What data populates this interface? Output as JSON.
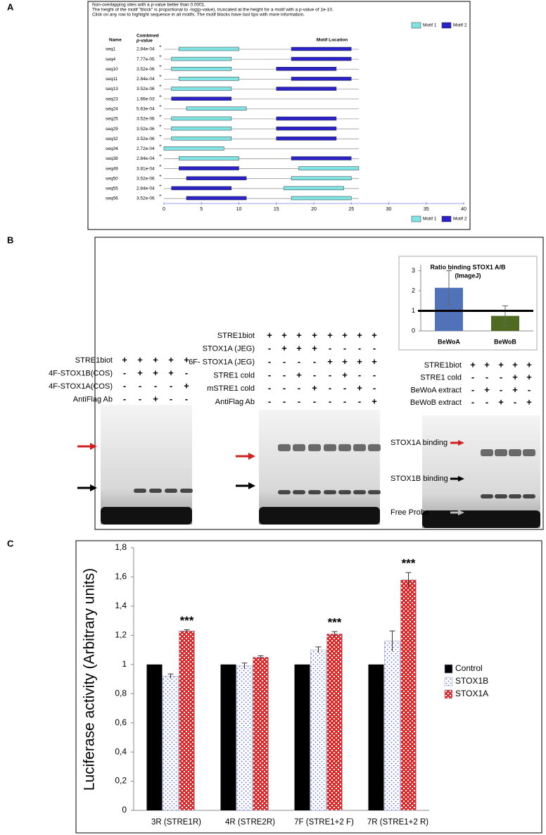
{
  "panels": {
    "labels": [
      "A",
      "B",
      "C"
    ]
  },
  "chart_data": [
    {
      "type": "motif",
      "header_lines": [
        "Non-overlapping sites with a p-value better than 0.0001.",
        "The height of the motif \"block\" is proportional to -log(p-value), truncated at the height for a motif with a p-value of 1e-10.",
        "Click on any row to highlight sequence in all motifs. The motif blocks have tool tips with more information."
      ],
      "name_header": "Name",
      "pvalue_header": [
        "Combined",
        "p-value"
      ],
      "location_header": "Motif Location",
      "categories": [
        "seq1",
        "seq4",
        "seq10",
        "seq11",
        "seq13",
        "seq23",
        "seq24",
        "seq25",
        "seq29",
        "seq32",
        "seq34",
        "seq38",
        "seq49",
        "seq50",
        "seq55",
        "seq56"
      ],
      "pvalues": [
        "2.84e-04",
        "7.77e-05",
        "3.52e-06",
        "2.84e-04",
        "3.52e-06",
        "1.66e-03",
        "5.63e-04",
        "3.52e-06",
        "3.52e-06",
        "3.52e-06",
        "2.72e-04",
        "2.84e-04",
        "3.81e-04",
        "3.52e-06",
        "2.84e-04",
        "3.52e-06"
      ],
      "strands": [
        "+",
        "+",
        "+",
        "+",
        "+",
        "+",
        "+",
        "+",
        "+",
        "+",
        "+",
        "+",
        "+",
        "+",
        "+",
        "+"
      ],
      "series": [
        {
          "name": "Motif 1",
          "color": "#80e4e4",
          "values": [
            [
              2,
              10
            ],
            [
              1,
              9
            ],
            [
              1,
              9
            ],
            [
              2,
              10
            ],
            [
              1,
              9
            ],
            null,
            [
              3,
              11
            ],
            [
              1,
              9
            ],
            [
              1,
              9
            ],
            [
              1,
              9
            ],
            [
              0,
              8
            ],
            [
              2,
              10
            ],
            [
              18,
              26
            ],
            [
              17,
              25
            ],
            [
              16,
              24
            ],
            [
              17,
              25
            ]
          ]
        },
        {
          "name": "Motif 2",
          "color": "#2a22c8",
          "values": [
            [
              17,
              25
            ],
            [
              17,
              25
            ],
            [
              15,
              23
            ],
            [
              17,
              25
            ],
            [
              15,
              23
            ],
            [
              1,
              9
            ],
            null,
            [
              15,
              23
            ],
            [
              15,
              23
            ],
            [
              15,
              23
            ],
            null,
            [
              17,
              25
            ],
            [
              2,
              10
            ],
            [
              3,
              11
            ],
            [
              1,
              9
            ],
            [
              3,
              11
            ]
          ]
        }
      ],
      "xlim": [
        0,
        40
      ],
      "xticks": [
        0,
        5,
        10,
        15,
        20,
        25,
        30,
        35,
        40
      ]
    },
    {
      "type": "bar",
      "title": "Ratio binding STOX1 A/B",
      "subtitle": "(ImageJ)",
      "categories": [
        "BeWoA",
        "BeWoB"
      ],
      "values": [
        2.15,
        0.75
      ],
      "errors": [
        0.85,
        0.5
      ],
      "colors": [
        "#4f72b8",
        "#4f6b22"
      ],
      "reference_line": 1,
      "ylim": [
        0,
        3.3
      ],
      "yticks": [
        0,
        1,
        2,
        3
      ]
    },
    {
      "type": "grouped-bar",
      "ylabel": "Luciferase activity (Arbitrary units)",
      "categories": [
        "3R (STRE1R)",
        "4R (STRE2R)",
        "7F (STRE1+2 F)",
        "7R (STRE1+2  R)"
      ],
      "series": [
        {
          "name": "Control",
          "color": "#000000",
          "pattern": "solid",
          "values": [
            1,
            1,
            1,
            1
          ],
          "errors": [
            0,
            0,
            0,
            0
          ]
        },
        {
          "name": "STOX1B",
          "color": "#5a6ad0",
          "pattern": "dots",
          "values": [
            0.92,
            0.99,
            1.1,
            1.16
          ],
          "errors": [
            0.015,
            0.02,
            0.02,
            0.07
          ]
        },
        {
          "name": "STOX1A",
          "color": "#e02828",
          "pattern": "checks",
          "values": [
            1.23,
            1.05,
            1.21,
            1.58
          ],
          "errors": [
            0.008,
            0.01,
            0.015,
            0.05
          ]
        }
      ],
      "significance": [
        "***",
        null,
        "***",
        "***"
      ],
      "ylim": [
        0,
        1.8
      ],
      "yticks": [
        0,
        {
          "value": 0.2,
          "label": "0,2"
        },
        {
          "value": 0.4,
          "label": "0,4"
        },
        {
          "value": 0.6,
          "label": "0,6"
        },
        {
          "value": 0.8,
          "label": "0,8"
        },
        1,
        {
          "value": 1.2,
          "label": "1,2"
        },
        {
          "value": 1.4,
          "label": "1,4"
        },
        {
          "value": 1.6,
          "label": "1,6"
        },
        {
          "value": 1.8,
          "label": "1,8"
        }
      ],
      "legend": "right"
    }
  ],
  "gels": [
    {
      "rows": [
        {
          "label": "STRE1biot",
          "lanes": [
            "+",
            "+",
            "+",
            "+",
            "+"
          ]
        },
        {
          "label": "4F-STOX1B(COS)",
          "lanes": [
            "-",
            "+",
            "+",
            "+",
            "-"
          ]
        },
        {
          "label": "4F-STOX1A(COS)",
          "lanes": [
            "-",
            "-",
            "-",
            "-",
            "+"
          ]
        },
        {
          "label": "AntiFlag Ab",
          "lanes": [
            "-",
            "-",
            "+",
            "-",
            "-"
          ]
        }
      ]
    },
    {
      "rows": [
        {
          "label": "STRE1biot",
          "lanes": [
            "+",
            "+",
            "+",
            "+",
            "+",
            "+",
            "+",
            "+"
          ]
        },
        {
          "label": "STOX1A (JEG)",
          "lanes": [
            "-",
            "+",
            "+",
            "+",
            "-",
            "-",
            "-",
            "-"
          ]
        },
        {
          "label": "6F- STOX1A (JEG)",
          "lanes": [
            "-",
            "-",
            "-",
            "-",
            "+",
            "+",
            "+",
            "+"
          ]
        },
        {
          "label": "STRE1 cold",
          "lanes": [
            "-",
            "-",
            "+",
            "-",
            "-",
            "+",
            "-",
            "-"
          ]
        },
        {
          "label": "mSTRE1 cold",
          "lanes": [
            "-",
            "-",
            "-",
            "+",
            "-",
            "-",
            "+",
            "-"
          ]
        },
        {
          "label": "AntiFlag Ab",
          "lanes": [
            "-",
            "-",
            "-",
            "-",
            "-",
            "-",
            "-",
            "+"
          ]
        }
      ]
    },
    {
      "rows": [
        {
          "label": "STRE1biot",
          "lanes": [
            "+",
            "+",
            "+",
            "+",
            "+"
          ]
        },
        {
          "label": "STRE1 cold",
          "lanes": [
            "-",
            "-",
            "-",
            "+",
            "+"
          ]
        },
        {
          "label": "BeWoA extract",
          "lanes": [
            "-",
            "+",
            "-",
            "+",
            "-"
          ]
        },
        {
          "label": "BeWoB extract",
          "lanes": [
            "-",
            "-",
            "+",
            "-",
            "+"
          ]
        }
      ],
      "band_labels": [
        "STOX1A binding",
        "STOX1B binding",
        "Free Probe"
      ]
    }
  ]
}
